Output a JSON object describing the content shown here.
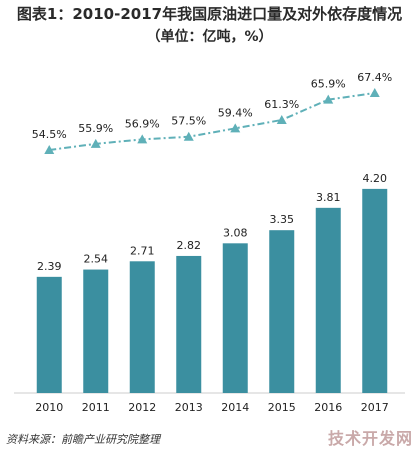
{
  "title": "图表1：2010-2017年我国原油进口量及对外依存度情况",
  "subtitle": "（单位：亿吨，%）",
  "source": "资料来源：前瞻产业研究院整理",
  "watermark": "技术开发网",
  "chart_data": {
    "type": "bar",
    "categories": [
      "2010",
      "2011",
      "2012",
      "2013",
      "2014",
      "2015",
      "2016",
      "2017"
    ],
    "series": [
      {
        "type": "bar",
        "values": [
          2.39,
          2.54,
          2.71,
          2.82,
          3.08,
          3.35,
          3.81,
          4.2
        ]
      },
      {
        "type": "line",
        "values": [
          54.5,
          55.9,
          56.9,
          57.5,
          59.4,
          61.3,
          65.9,
          67.4
        ],
        "labels": [
          "54.5%",
          "55.9%",
          "56.9%",
          "57.5%",
          "59.4%",
          "61.3%",
          "65.9%",
          "67.4%"
        ]
      }
    ],
    "bar_labels": [
      "2.39",
      "2.54",
      "2.71",
      "2.82",
      "3.08",
      "3.35",
      "3.81",
      "4.20"
    ],
    "colors": {
      "bar": "#3b8fa0",
      "line": "#5fb0b8"
    }
  }
}
